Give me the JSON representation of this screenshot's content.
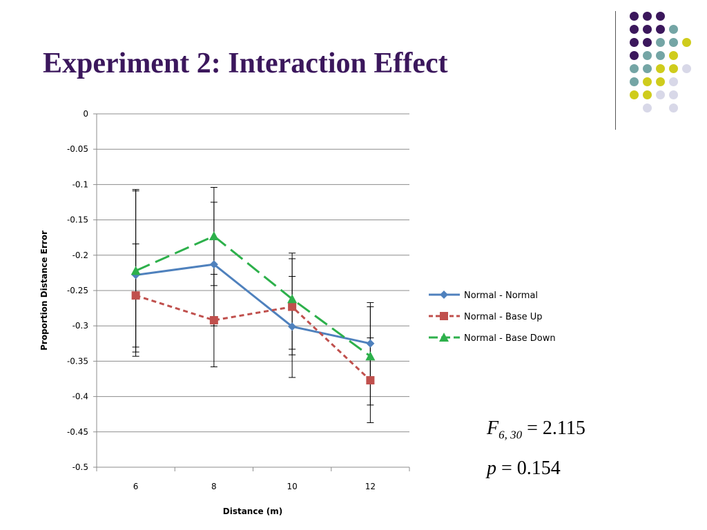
{
  "slide": {
    "title": "Experiment 2: Interaction Effect",
    "stat_f_label": "F",
    "stat_f_sub": "6, 30",
    "stat_f_value": " = 2.115",
    "stat_p_label": "p",
    "stat_p_value": " = 0.154"
  },
  "colors": {
    "title": "#3b175c",
    "dot_purple": "#3b175c",
    "dot_teal": "#74a5a5",
    "dot_yellow": "#cfcc1c",
    "dot_lavender": "#d8d8e8"
  },
  "decoration": {
    "dot_rows": [
      [
        "purple",
        "purple",
        "purple",
        "",
        "",
        ""
      ],
      [
        "purple",
        "purple",
        "purple",
        "teal",
        "",
        ""
      ],
      [
        "purple",
        "purple",
        "teal",
        "teal",
        "yellow",
        ""
      ],
      [
        "purple",
        "teal",
        "teal",
        "yellow",
        "",
        ""
      ],
      [
        "teal",
        "teal",
        "yellow",
        "yellow",
        "lavender",
        ""
      ],
      [
        "teal",
        "yellow",
        "yellow",
        "lavender",
        "",
        ""
      ],
      [
        "yellow",
        "yellow",
        "lavender",
        "lavender",
        "",
        ""
      ],
      [
        "",
        "lavender",
        "",
        "lavender",
        "",
        ""
      ]
    ]
  },
  "chart_data": {
    "type": "line",
    "title": "",
    "xlabel": "Distance (m)",
    "ylabel": "Proportion Distance  Error",
    "x": [
      6,
      8,
      10,
      12
    ],
    "ylim": [
      -0.5,
      0
    ],
    "yticks": [
      0,
      -0.05,
      -0.1,
      -0.15,
      -0.2,
      -0.25,
      -0.3,
      -0.35,
      -0.4,
      -0.45,
      -0.5
    ],
    "ytick_labels": [
      "0",
      "-0.05",
      "-0.1",
      "-0.15",
      "-0.2",
      "-0.25",
      "-0.3",
      "-0.35",
      "-0.4",
      "-0.45",
      "-0.5"
    ],
    "xtick_labels": [
      "6",
      "8",
      "10",
      "12"
    ],
    "grid": "horizontal",
    "legend_position": "right",
    "series": [
      {
        "name": "Normal - Normal",
        "color": "#4f81bd",
        "dash": "solid",
        "marker": "diamond",
        "values": [
          -0.228,
          -0.213,
          -0.301,
          -0.325
        ],
        "err_low": [
          -0.343,
          -0.243,
          -0.333,
          -0.412
        ],
        "err_high": [
          -0.109,
          -0.104,
          -0.205,
          -0.273
        ]
      },
      {
        "name": "Normal - Base Up",
        "color": "#c0504d",
        "dash": "short",
        "marker": "square",
        "values": [
          -0.257,
          -0.292,
          -0.273,
          -0.377
        ],
        "err_low": [
          -0.33,
          -0.358,
          -0.341,
          -0.437
        ],
        "err_high": [
          -0.184,
          -0.227,
          -0.197,
          -0.317
        ]
      },
      {
        "name": "Normal - Base Down",
        "color": "#2db04b",
        "dash": "long",
        "marker": "triangle",
        "values": [
          -0.222,
          -0.173,
          -0.262,
          -0.343
        ],
        "err_low": [
          -0.337,
          -0.3,
          -0.373,
          -0.38
        ],
        "err_high": [
          -0.107,
          -0.125,
          -0.23,
          -0.267
        ]
      }
    ]
  }
}
